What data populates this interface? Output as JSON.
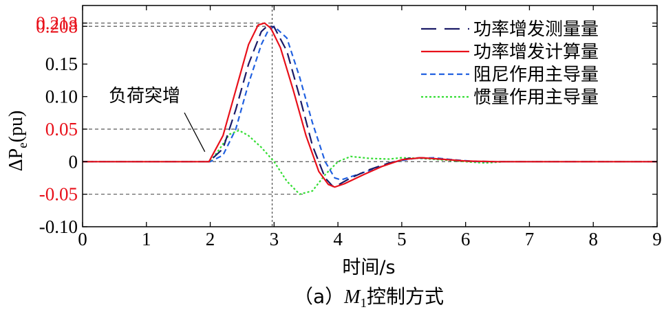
{
  "chart_data": {
    "type": "line",
    "ylabel_prefix": "ΔP",
    "ylabel_sub": "e",
    "ylabel_suffix": "(pu)",
    "xlabel": "时间/s",
    "caption_prefix": "（a）",
    "caption_var": "M",
    "caption_sub": "1",
    "caption_suffix": "控制方式",
    "annotation": "负荷突增",
    "annotation_target": [
      1.98,
      0.009
    ],
    "xlim": [
      0,
      9
    ],
    "ylim": [
      -0.1,
      0.24
    ],
    "x_ticks": [
      "0",
      "1",
      "2",
      "3",
      "4",
      "5",
      "6",
      "7",
      "8",
      "9"
    ],
    "y_ticks": [
      {
        "value": 0.213,
        "label": "0.213",
        "color": "#e8101a"
      },
      {
        "value": 0.208,
        "label": "0.208",
        "color": "#e8101a"
      },
      {
        "value": 0.15,
        "label": "0.15",
        "color": "#000000"
      },
      {
        "value": 0.1,
        "label": "0.10",
        "color": "#000000"
      },
      {
        "value": 0.05,
        "label": "0.05",
        "color": "#e8101a"
      },
      {
        "value": 0,
        "label": "0",
        "color": "#000000"
      },
      {
        "value": -0.05,
        "label": "-0.05",
        "color": "#e8101a"
      },
      {
        "value": -0.1,
        "label": "-0.10",
        "color": "#000000"
      }
    ],
    "reference_lines": {
      "vertical_x": 2.97,
      "horizontal": [
        0.213,
        0.208,
        0.05,
        0,
        -0.05
      ]
    },
    "legend_position": "top-right",
    "series": [
      {
        "name": "功率增发测量量",
        "color": "#1a1a66",
        "dash": "long-dash",
        "x": [
          0,
          1,
          1.98,
          2.2,
          2.4,
          2.6,
          2.8,
          2.9,
          3.0,
          3.2,
          3.4,
          3.6,
          3.8,
          3.92,
          4.0,
          4.2,
          4.5,
          4.8,
          5.1,
          5.3,
          5.6,
          6.0,
          6.5,
          7.0,
          8.0,
          9.0
        ],
        "y": [
          0,
          0,
          0,
          0.02,
          0.08,
          0.15,
          0.2,
          0.209,
          0.207,
          0.17,
          0.1,
          0.025,
          -0.025,
          -0.038,
          -0.036,
          -0.025,
          -0.012,
          -0.002,
          0.005,
          0.006,
          0.004,
          0.001,
          0.0,
          0.0,
          0.0,
          0.0
        ]
      },
      {
        "name": "功率增发计算量",
        "color": "#e8101a",
        "dash": "solid",
        "x": [
          0,
          1,
          1.98,
          2.2,
          2.4,
          2.6,
          2.75,
          2.85,
          2.95,
          3.1,
          3.3,
          3.5,
          3.7,
          3.85,
          3.95,
          4.1,
          4.4,
          4.7,
          5.0,
          5.3,
          5.6,
          6.0,
          6.5,
          7.0,
          8.0,
          9.0
        ],
        "y": [
          0,
          0,
          0,
          0.04,
          0.11,
          0.18,
          0.21,
          0.213,
          0.205,
          0.175,
          0.11,
          0.04,
          -0.015,
          -0.035,
          -0.039,
          -0.034,
          -0.02,
          -0.007,
          0.003,
          0.006,
          0.004,
          0.001,
          0.0,
          0.0,
          0.0,
          0.0
        ]
      },
      {
        "name": "阻尼作用主导量",
        "color": "#2060e0",
        "dash": "dash",
        "x": [
          0,
          1,
          2.0,
          2.2,
          2.4,
          2.6,
          2.8,
          2.9,
          3.0,
          3.2,
          3.4,
          3.6,
          3.8,
          3.95,
          4.05,
          4.3,
          4.6,
          4.9,
          5.2,
          5.5,
          5.8,
          6.2,
          6.6,
          7.0,
          8.0,
          9.0
        ],
        "y": [
          0,
          0,
          0,
          0.01,
          0.05,
          0.12,
          0.18,
          0.2,
          0.208,
          0.19,
          0.13,
          0.06,
          0.0,
          -0.025,
          -0.028,
          -0.02,
          -0.01,
          0.0,
          0.005,
          0.006,
          0.003,
          0.0,
          0.0,
          0.0,
          0.0,
          0.0
        ]
      },
      {
        "name": "惯量作用主导量",
        "color": "#33dd33",
        "dash": "dot",
        "x": [
          0,
          1,
          2.0,
          2.15,
          2.3,
          2.45,
          2.6,
          2.8,
          3.0,
          3.2,
          3.4,
          3.6,
          3.8,
          4.0,
          4.2,
          4.5,
          4.8,
          5.0,
          5.3,
          5.6,
          6.0,
          6.3,
          6.6,
          7.0,
          8.0,
          9.0
        ],
        "y": [
          0,
          0,
          0,
          0.02,
          0.042,
          0.048,
          0.04,
          0.022,
          0.0,
          -0.03,
          -0.05,
          -0.045,
          -0.02,
          0.0,
          0.008,
          0.005,
          0.004,
          0.006,
          0.005,
          0.003,
          0.0,
          -0.002,
          0.0,
          0.0,
          0.0,
          0.0
        ]
      }
    ]
  }
}
